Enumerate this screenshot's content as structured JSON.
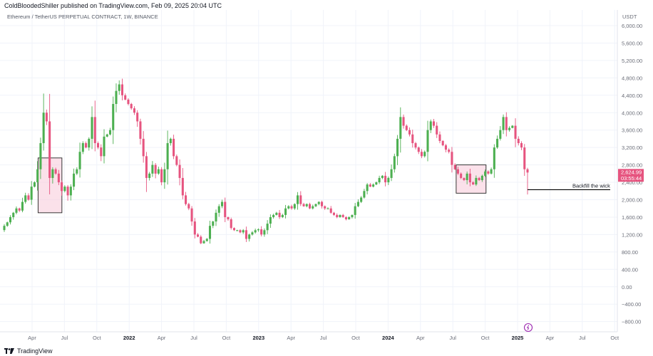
{
  "header": {
    "published": "ColdBloodedShiller published on TradingView.com, Feb 09, 2025 20:04 UTC",
    "symbol": "Ethereum / TetherUS PERPETUAL CONTRACT, 1W, BINANCE",
    "currency": "USDT"
  },
  "footer": {
    "brand": "TradingView"
  },
  "colors": {
    "up": "#4caf50",
    "down": "#e6547f",
    "zone_fill": "#f8c8d8",
    "zone_stroke": "#222222",
    "price_tag": "#e6547f"
  },
  "current_price": {
    "price": "2,624.99",
    "countdown": "03:55:44"
  },
  "annotation": {
    "text": "Backfill the wick",
    "level": 2230
  },
  "chart_data": {
    "type": "candlestick",
    "title": "Ethereum / TetherUS PERPETUAL CONTRACT, 1W, BINANCE",
    "ylabel": "USDT",
    "ylim": [
      -950,
      6200
    ],
    "y_ticks": [
      "6,000.00",
      "5,600.00",
      "5,200.00",
      "4,800.00",
      "4,400.00",
      "4,000.00",
      "3,600.00",
      "3,200.00",
      "2,800.00",
      "2,400.00",
      "2,000.00",
      "1,600.00",
      "1,200.00",
      "800.00",
      "400.00",
      "0.00",
      "−400.00",
      "−800.00"
    ],
    "x_ticks": [
      "Apr",
      "Jul",
      "Oct",
      "2022",
      "Apr",
      "Jul",
      "Oct",
      "2023",
      "Apr",
      "Jul",
      "Oct",
      "2024",
      "Apr",
      "Jul",
      "Oct",
      "2025",
      "Apr",
      "Jul",
      "Oct"
    ],
    "x_bold": [
      "2022",
      "2023",
      "2024",
      "2025"
    ],
    "x_range": [
      "2021-02-01",
      "2025-10-25"
    ],
    "weekly_closes_note": "approximate weekly closes",
    "closes": [
      1400,
      1480,
      1600,
      1700,
      1800,
      1750,
      1950,
      2100,
      2000,
      2300,
      2400,
      2700,
      3300,
      4000,
      3800,
      2500,
      2700,
      2600,
      2400,
      2200,
      2300,
      2100,
      2300,
      2600,
      2700,
      3100,
      3300,
      3200,
      3400,
      3900,
      3300,
      3200,
      3000,
      3450,
      3500,
      3600,
      4200,
      4500,
      4650,
      4400,
      4300,
      4200,
      4100,
      4000,
      3800,
      3400,
      3000,
      2500,
      2600,
      2800,
      2600,
      2700,
      2400,
      2700,
      3300,
      3400,
      3000,
      2800,
      2500,
      2100,
      1900,
      1800,
      1500,
      1200,
      1150,
      1000,
      1050,
      1100,
      1400,
      1500,
      1700,
      1850,
      1950,
      1600,
      1550,
      1350,
      1300,
      1300,
      1250,
      1300,
      1100,
      1200,
      1250,
      1300,
      1320,
      1200,
      1300,
      1450,
      1600,
      1650,
      1700,
      1600,
      1650,
      1800,
      1850,
      1800,
      1900,
      2100,
      1900,
      1850,
      1900,
      1800,
      1850,
      1900,
      1950,
      1850,
      1800,
      1800,
      1700,
      1650,
      1600,
      1650,
      1600,
      1550,
      1600,
      1650,
      1850,
      1950,
      2050,
      2200,
      2350,
      2300,
      2350,
      2400,
      2500,
      2550,
      2400,
      2500,
      2700,
      3000,
      3400,
      3900,
      3700,
      3600,
      3500,
      3300,
      3200,
      3100,
      3000,
      3100,
      3600,
      3800,
      3700,
      3500,
      3350,
      3250,
      3150,
      3100,
      2800,
      2700,
      2600,
      2500,
      2450,
      2600,
      2400,
      2350,
      2500,
      2450,
      2550,
      2650,
      2600,
      2700,
      3200,
      3400,
      3600,
      3900,
      3600,
      3650,
      3700,
      3400,
      3300,
      3200,
      2700,
      2625
    ],
    "zones": [
      {
        "from": "2021-05-19",
        "to": "2021-07-25",
        "low": 1700,
        "high": 2960
      },
      {
        "from": "2024-08-06",
        "to": "2024-10-29",
        "low": 2150,
        "high": 2800
      }
    ],
    "annotations": [
      "Backfill the wick"
    ]
  }
}
